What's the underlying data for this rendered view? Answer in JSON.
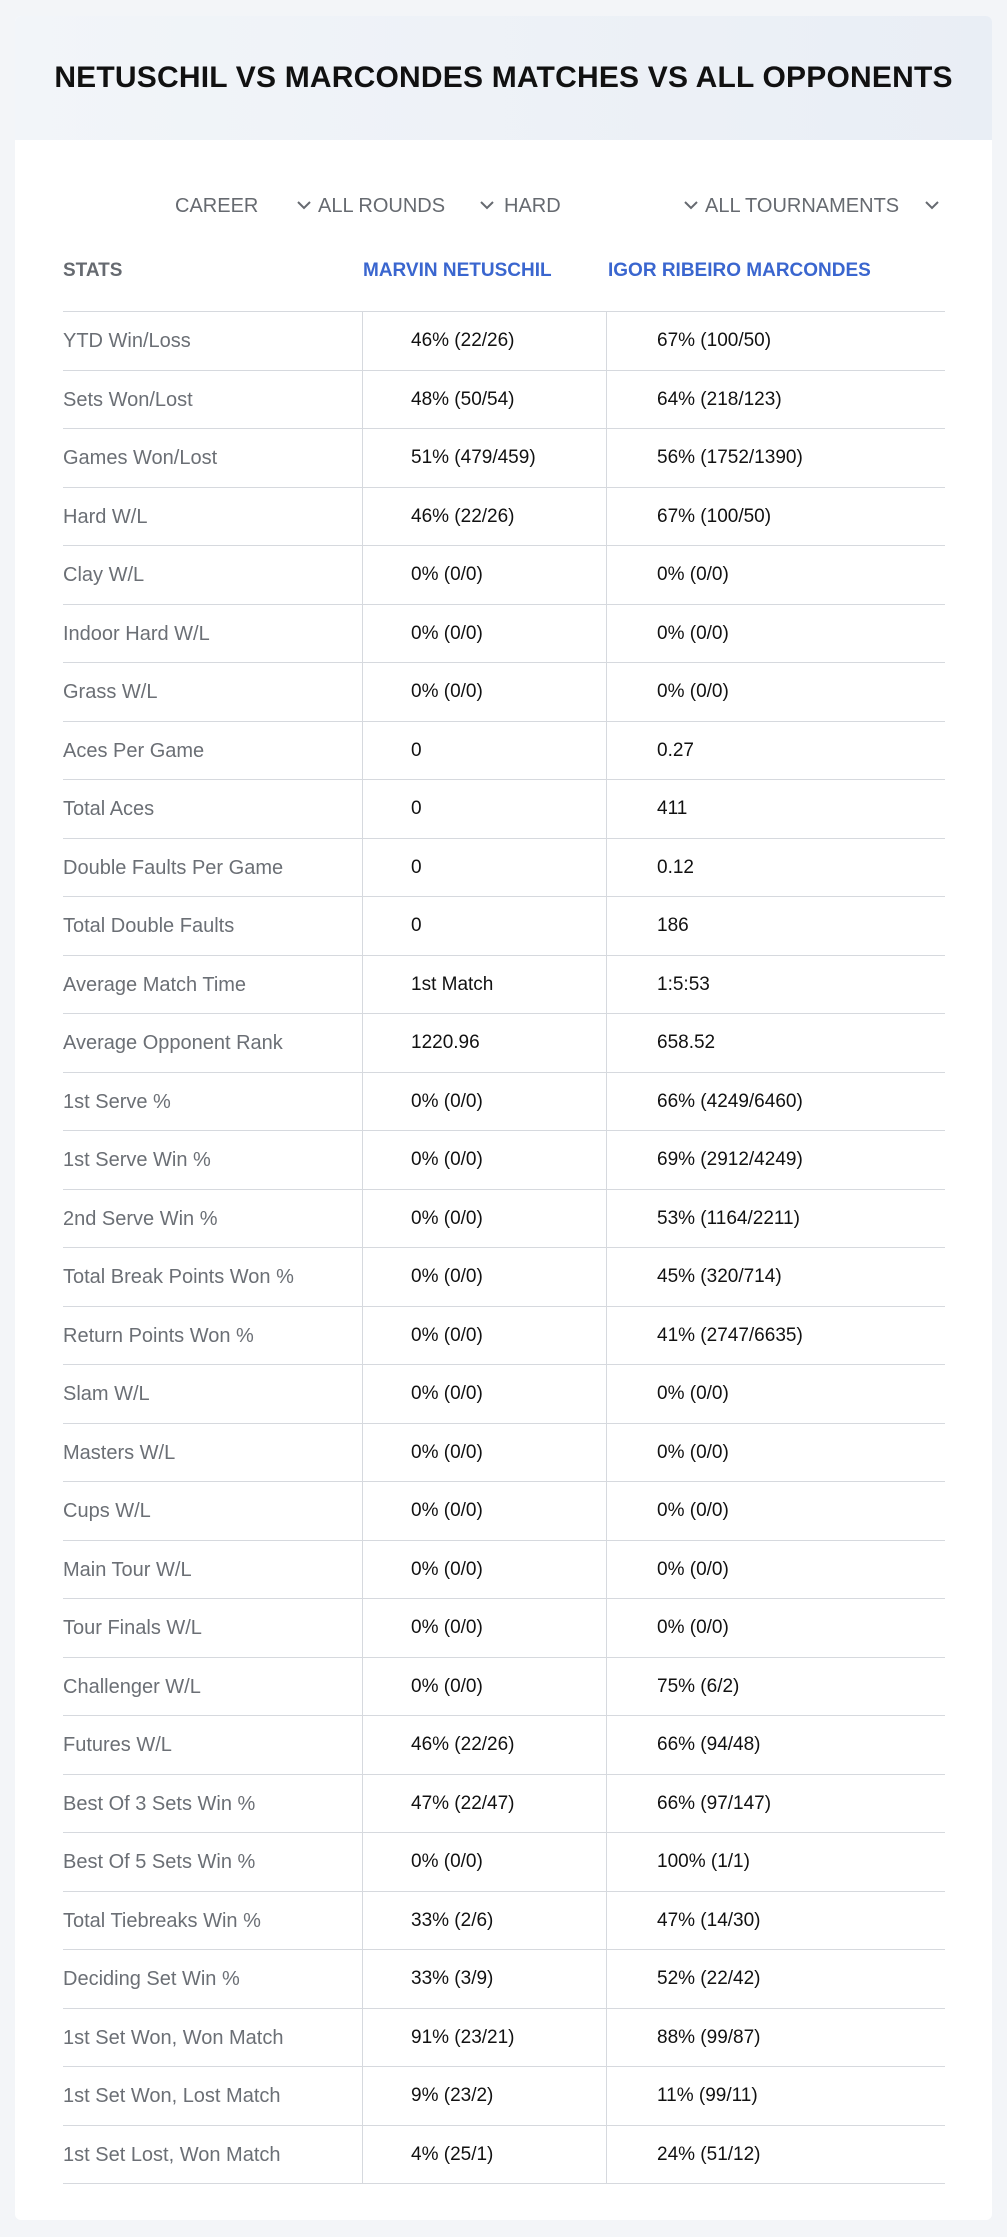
{
  "header": {
    "title": "NETUSCHIL VS MARCONDES MATCHES VS ALL OPPONENTS"
  },
  "filters": {
    "career": "CAREER",
    "rounds": "ALL ROUNDS",
    "surface": "HARD",
    "tournaments": "ALL TOURNAMENTS"
  },
  "table": {
    "headers": {
      "stats": "STATS",
      "player1": "MARVIN NETUSCHIL",
      "player2": "IGOR RIBEIRO MARCONDES"
    },
    "rows": [
      {
        "label": "YTD Win/Loss",
        "p1": "46% (22/26)",
        "p2": "67% (100/50)"
      },
      {
        "label": "Sets Won/Lost",
        "p1": "48% (50/54)",
        "p2": "64% (218/123)"
      },
      {
        "label": "Games Won/Lost",
        "p1": "51% (479/459)",
        "p2": "56% (1752/1390)"
      },
      {
        "label": "Hard W/L",
        "p1": "46% (22/26)",
        "p2": "67% (100/50)"
      },
      {
        "label": "Clay W/L",
        "p1": "0% (0/0)",
        "p2": "0% (0/0)"
      },
      {
        "label": "Indoor Hard W/L",
        "p1": "0% (0/0)",
        "p2": "0% (0/0)"
      },
      {
        "label": "Grass W/L",
        "p1": "0% (0/0)",
        "p2": "0% (0/0)"
      },
      {
        "label": "Aces Per Game",
        "p1": "0",
        "p2": "0.27"
      },
      {
        "label": "Total Aces",
        "p1": "0",
        "p2": "411"
      },
      {
        "label": "Double Faults Per Game",
        "p1": "0",
        "p2": "0.12"
      },
      {
        "label": "Total Double Faults",
        "p1": "0",
        "p2": "186"
      },
      {
        "label": "Average Match Time",
        "p1": "1st Match",
        "p2": "1:5:53"
      },
      {
        "label": "Average Opponent Rank",
        "p1": "1220.96",
        "p2": "658.52"
      },
      {
        "label": "1st Serve %",
        "p1": "0% (0/0)",
        "p2": "66% (4249/6460)"
      },
      {
        "label": "1st Serve Win %",
        "p1": "0% (0/0)",
        "p2": "69% (2912/4249)"
      },
      {
        "label": "2nd Serve Win %",
        "p1": "0% (0/0)",
        "p2": "53% (1164/2211)"
      },
      {
        "label": "Total Break Points Won %",
        "p1": "0% (0/0)",
        "p2": "45% (320/714)"
      },
      {
        "label": "Return Points Won %",
        "p1": "0% (0/0)",
        "p2": "41% (2747/6635)"
      },
      {
        "label": "Slam W/L",
        "p1": "0% (0/0)",
        "p2": "0% (0/0)"
      },
      {
        "label": "Masters W/L",
        "p1": "0% (0/0)",
        "p2": "0% (0/0)"
      },
      {
        "label": "Cups W/L",
        "p1": "0% (0/0)",
        "p2": "0% (0/0)"
      },
      {
        "label": "Main Tour W/L",
        "p1": "0% (0/0)",
        "p2": "0% (0/0)"
      },
      {
        "label": "Tour Finals W/L",
        "p1": "0% (0/0)",
        "p2": "0% (0/0)"
      },
      {
        "label": "Challenger W/L",
        "p1": "0% (0/0)",
        "p2": "75% (6/2)"
      },
      {
        "label": "Futures W/L",
        "p1": "46% (22/26)",
        "p2": "66% (94/48)"
      },
      {
        "label": "Best Of 3 Sets Win %",
        "p1": "47% (22/47)",
        "p2": "66% (97/147)"
      },
      {
        "label": "Best Of 5 Sets Win %",
        "p1": "0% (0/0)",
        "p2": "100% (1/1)"
      },
      {
        "label": "Total Tiebreaks Win %",
        "p1": "33% (2/6)",
        "p2": "47% (14/30)"
      },
      {
        "label": "Deciding Set Win %",
        "p1": "33% (3/9)",
        "p2": "52% (22/42)"
      },
      {
        "label": "1st Set Won, Won Match",
        "p1": "91% (23/21)",
        "p2": "88% (99/87)"
      },
      {
        "label": "1st Set Won, Lost Match",
        "p1": "9% (23/2)",
        "p2": "11% (99/11)"
      },
      {
        "label": "1st Set Lost, Won Match",
        "p1": "4% (25/1)",
        "p2": "24% (51/12)"
      }
    ]
  }
}
